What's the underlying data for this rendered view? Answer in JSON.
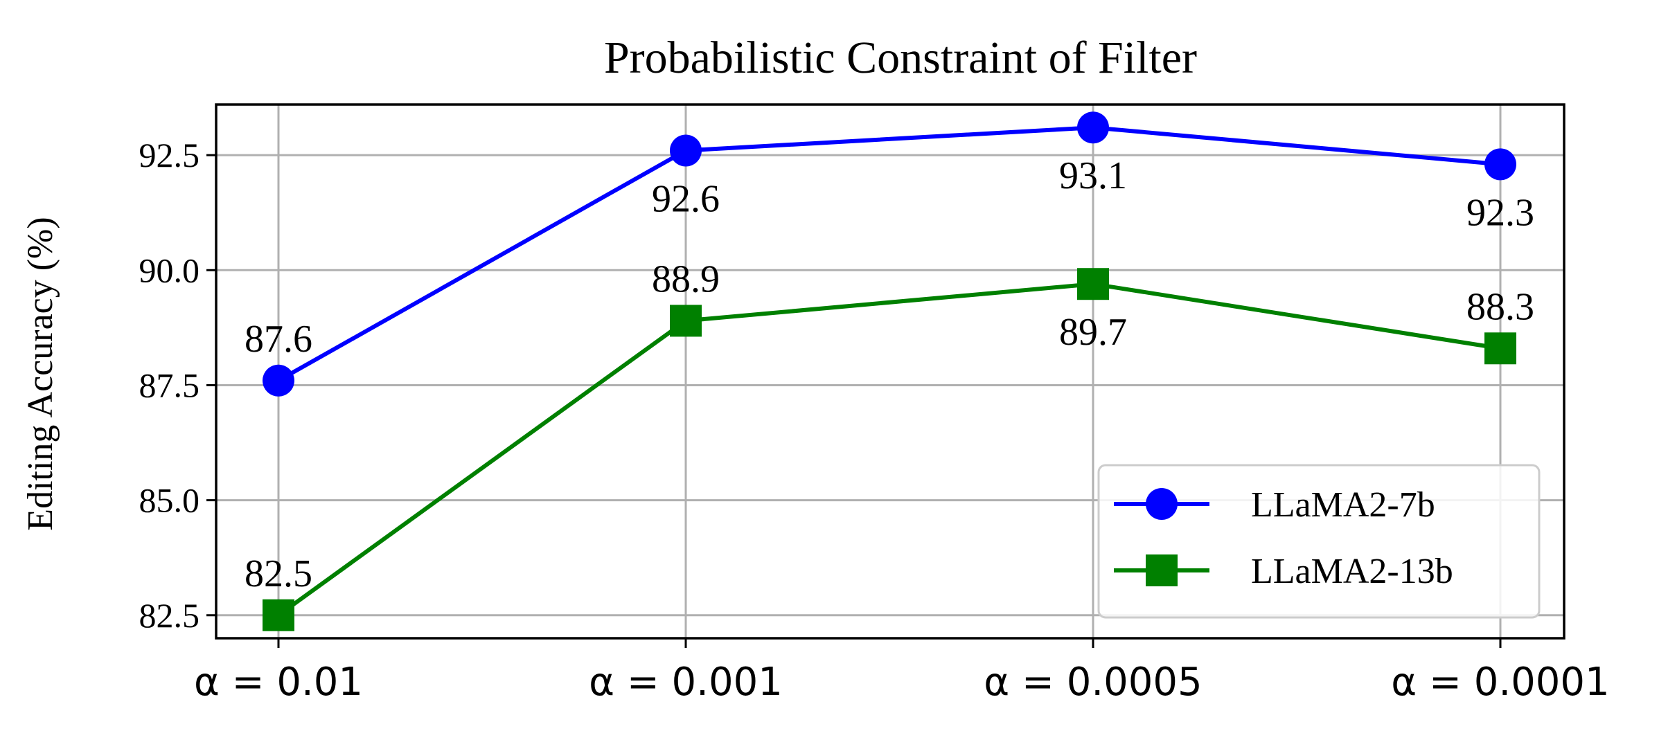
{
  "chart_data": {
    "type": "line",
    "title": "Probabilistic Constraint of Filter",
    "xlabel": "",
    "ylabel": "Editing Accuracy (%)",
    "categories": [
      "α = 0.01",
      "α = 0.001",
      "α = 0.0005",
      "α = 0.0001"
    ],
    "ylim": [
      82.0,
      93.6
    ],
    "yticks": [
      "82.5",
      "85.0",
      "87.5",
      "90.0",
      "92.5"
    ],
    "grid": true,
    "legend_position": "lower-right",
    "series": [
      {
        "name": "LLaMA2-7b",
        "values": [
          87.6,
          92.6,
          93.1,
          92.3
        ],
        "labels": [
          "87.6",
          "92.6",
          "93.1",
          "92.3"
        ],
        "label_position": [
          "above",
          "below",
          "below",
          "below"
        ],
        "color": "#0000ff",
        "marker": "circle"
      },
      {
        "name": "LLaMA2-13b",
        "values": [
          82.5,
          88.9,
          89.7,
          88.3
        ],
        "labels": [
          "82.5",
          "88.9",
          "89.7",
          "88.3"
        ],
        "label_position": [
          "above",
          "above",
          "below",
          "above"
        ],
        "color": "#008000",
        "marker": "square"
      }
    ]
  }
}
